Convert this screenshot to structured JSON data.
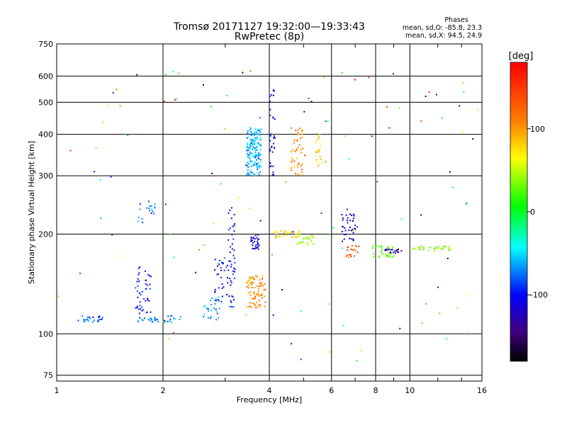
{
  "chart_data": {
    "type": "scatter",
    "title": "Tromsø 20171127 19:32:00—19:33:43",
    "subtitle": "RwPretec (8p)",
    "stats": {
      "heading": "Phases",
      "line_o": "mean, sd,O: -85.8, 23.3",
      "line_x": "mean, sd,X:  94.5, 24.9"
    },
    "xlabel": "Frequency [MHz]",
    "ylabel": "Stationary phase Virtual Height [km]",
    "x_scale": "log",
    "y_scale": "log",
    "xlim": [
      1,
      16
    ],
    "ylim": [
      72,
      750
    ],
    "x_ticks": [
      1,
      2,
      4,
      6,
      8,
      10,
      16
    ],
    "x_tick_labels": [
      "1",
      "2",
      "4",
      "6",
      "8",
      "10",
      "16"
    ],
    "y_ticks": [
      75,
      100,
      200,
      300,
      400,
      500,
      600,
      750
    ],
    "y_tick_labels": [
      "75",
      "100",
      "200",
      "300",
      "400",
      "500",
      "600",
      "750"
    ],
    "grid": true,
    "colorbar": {
      "label": "[deg]",
      "range": [
        -180,
        180
      ],
      "ticks": [
        100,
        0,
        -100
      ],
      "tick_labels": [
        "100",
        "0",
        "-100"
      ],
      "colors": [
        "#ff0000",
        "#ff8000",
        "#ffff00",
        "#00ff00",
        "#00ffff",
        "#0000ff",
        "#400080",
        "#000000"
      ]
    },
    "clusters": [
      {
        "f": [
          1.15,
          1.35
        ],
        "h": [
          108,
          114
        ],
        "phase": -80
      },
      {
        "f": [
          1.7,
          1.95
        ],
        "h": [
          108,
          112
        ],
        "phase": -75
      },
      {
        "f": [
          1.65,
          1.85
        ],
        "h": [
          115,
          160
        ],
        "phase": -100
      },
      {
        "f": [
          1.7,
          1.9
        ],
        "h": [
          215,
          255
        ],
        "phase": -75
      },
      {
        "f": [
          2.0,
          2.25
        ],
        "h": [
          108,
          114
        ],
        "phase": -70
      },
      {
        "f": [
          2.6,
          2.9
        ],
        "h": [
          110,
          130
        ],
        "phase": -65
      },
      {
        "f": [
          2.8,
          3.2
        ],
        "h": [
          120,
          170
        ],
        "phase": -100
      },
      {
        "f": [
          3.05,
          3.2
        ],
        "h": [
          150,
          240
        ],
        "phase": -105
      },
      {
        "f": [
          3.45,
          3.8
        ],
        "h": [
          300,
          420
        ],
        "phase": -60
      },
      {
        "f": [
          3.55,
          3.75
        ],
        "h": [
          180,
          200
        ],
        "phase": -110
      },
      {
        "f": [
          3.45,
          3.9
        ],
        "h": [
          120,
          150
        ],
        "phase": 120
      },
      {
        "f": [
          4.0,
          4.15
        ],
        "h": [
          300,
          560
        ],
        "phase": -110
      },
      {
        "f": [
          4.1,
          4.9
        ],
        "h": [
          195,
          205
        ],
        "phase": 100
      },
      {
        "f": [
          4.6,
          5.0
        ],
        "h": [
          300,
          420
        ],
        "phase": 115
      },
      {
        "f": [
          5.4,
          5.6
        ],
        "h": [
          320,
          400
        ],
        "phase": 105
      },
      {
        "f": [
          4.8,
          5.4
        ],
        "h": [
          185,
          200
        ],
        "phase": 60
      },
      {
        "f": [
          6.4,
          7.1
        ],
        "h": [
          190,
          230
        ],
        "phase": -120
      },
      {
        "f": [
          6.6,
          7.2
        ],
        "h": [
          170,
          185
        ],
        "phase": 140
      },
      {
        "f": [
          7.8,
          9.0
        ],
        "h": [
          170,
          185
        ],
        "phase": 40
      },
      {
        "f": [
          8.5,
          9.5
        ],
        "h": [
          175,
          180
        ],
        "phase": -130
      },
      {
        "f": [
          10.0,
          13.0
        ],
        "h": [
          178,
          184
        ],
        "phase": 50
      },
      {
        "f": [
          1.0,
          16.0
        ],
        "h": [
          80,
          650
        ],
        "phase": 0
      }
    ],
    "cluster_point_counts": [
      25,
      20,
      45,
      20,
      15,
      25,
      50,
      25,
      160,
      30,
      90,
      35,
      35,
      50,
      20,
      25,
      40,
      20,
      35,
      20,
      35,
      120
    ]
  }
}
